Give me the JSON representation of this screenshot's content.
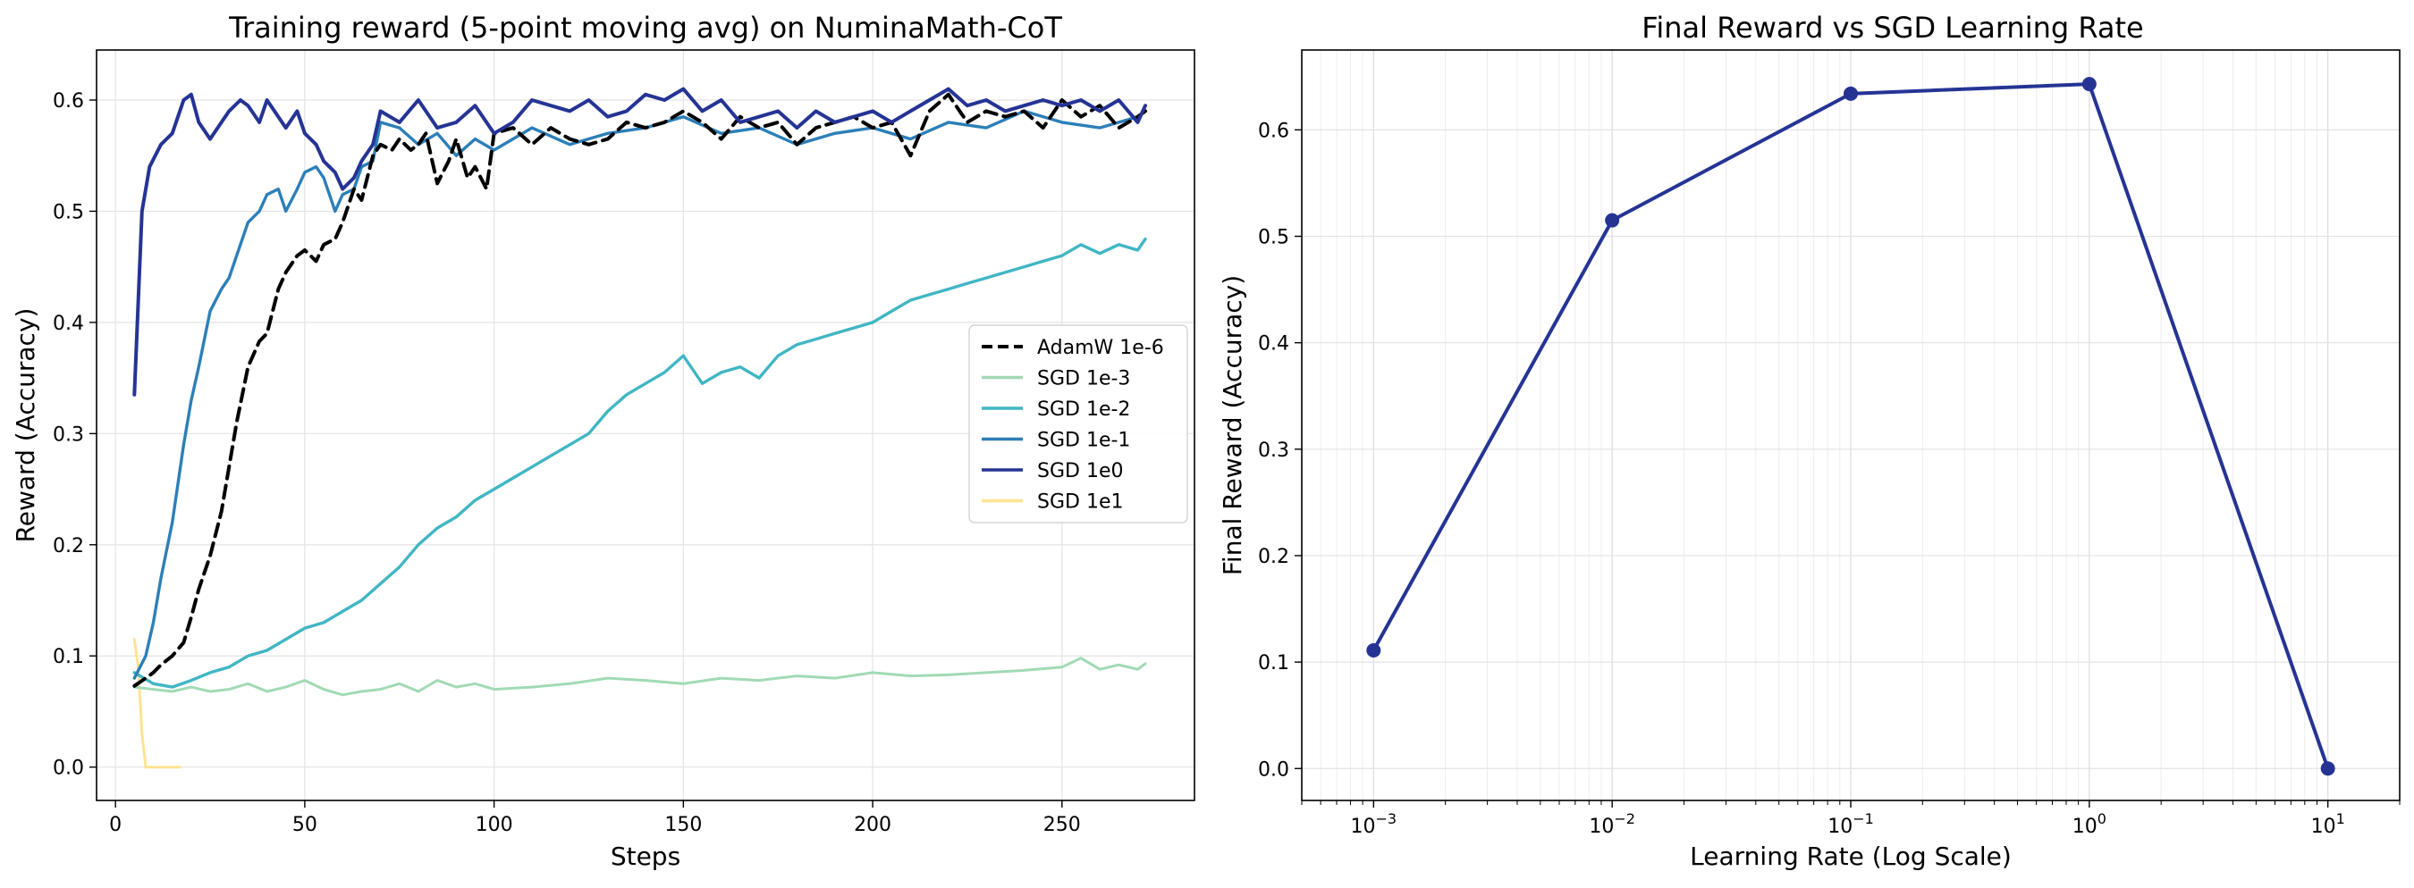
{
  "chart_data": [
    {
      "type": "line",
      "title": "Training reward (5-point moving avg) on NuminaMath-CoT",
      "xlabel": "Steps",
      "ylabel": "Reward (Accuracy)",
      "xlim": [
        -5,
        285
      ],
      "ylim": [
        -0.03,
        0.645
      ],
      "xticks": [
        0,
        50,
        100,
        150,
        200,
        250
      ],
      "yticks": [
        0.0,
        0.1,
        0.2,
        0.3,
        0.4,
        0.5,
        0.6
      ],
      "grid": true,
      "legend_position": "center-right",
      "series": [
        {
          "name": "AdamW 1e-6",
          "color": "#000000",
          "dashed": true,
          "x": [
            5,
            8,
            10,
            12,
            15,
            18,
            20,
            22,
            25,
            28,
            30,
            32,
            35,
            38,
            40,
            43,
            45,
            48,
            50,
            53,
            55,
            58,
            60,
            63,
            65,
            68,
            70,
            73,
            75,
            78,
            80,
            82,
            85,
            88,
            90,
            93,
            95,
            98,
            100,
            105,
            110,
            115,
            120,
            125,
            130,
            135,
            140,
            145,
            150,
            155,
            160,
            165,
            170,
            175,
            180,
            185,
            190,
            195,
            200,
            205,
            210,
            215,
            220,
            225,
            230,
            235,
            240,
            245,
            250,
            255,
            260,
            265,
            270,
            272
          ],
          "y": [
            0.073,
            0.08,
            0.085,
            0.092,
            0.1,
            0.112,
            0.135,
            0.16,
            0.19,
            0.23,
            0.27,
            0.31,
            0.36,
            0.383,
            0.39,
            0.43,
            0.445,
            0.46,
            0.465,
            0.455,
            0.47,
            0.475,
            0.49,
            0.52,
            0.51,
            0.55,
            0.56,
            0.555,
            0.565,
            0.555,
            0.56,
            0.57,
            0.525,
            0.545,
            0.565,
            0.53,
            0.54,
            0.52,
            0.57,
            0.575,
            0.56,
            0.575,
            0.565,
            0.56,
            0.565,
            0.58,
            0.575,
            0.58,
            0.59,
            0.58,
            0.565,
            0.585,
            0.575,
            0.58,
            0.56,
            0.575,
            0.58,
            0.585,
            0.575,
            0.58,
            0.55,
            0.59,
            0.605,
            0.58,
            0.59,
            0.585,
            0.59,
            0.575,
            0.6,
            0.585,
            0.595,
            0.575,
            0.585,
            0.59
          ]
        },
        {
          "name": "SGD 1e-3",
          "color": "#a1dab4",
          "dashed": false,
          "x": [
            5,
            10,
            15,
            20,
            25,
            30,
            35,
            40,
            45,
            50,
            55,
            60,
            65,
            70,
            75,
            80,
            85,
            90,
            95,
            100,
            110,
            120,
            130,
            140,
            150,
            160,
            170,
            180,
            190,
            200,
            210,
            220,
            230,
            240,
            250,
            255,
            260,
            265,
            270,
            272
          ],
          "y": [
            0.072,
            0.07,
            0.068,
            0.072,
            0.068,
            0.07,
            0.075,
            0.068,
            0.072,
            0.078,
            0.07,
            0.065,
            0.068,
            0.07,
            0.075,
            0.068,
            0.078,
            0.072,
            0.075,
            0.07,
            0.072,
            0.075,
            0.08,
            0.078,
            0.075,
            0.08,
            0.078,
            0.082,
            0.08,
            0.085,
            0.082,
            0.083,
            0.085,
            0.087,
            0.09,
            0.098,
            0.088,
            0.092,
            0.088,
            0.093
          ]
        },
        {
          "name": "SGD 1e-2",
          "color": "#41b6c4",
          "dashed": false,
          "x": [
            5,
            10,
            15,
            20,
            25,
            30,
            35,
            40,
            45,
            50,
            55,
            60,
            65,
            70,
            75,
            80,
            85,
            90,
            95,
            100,
            105,
            110,
            115,
            120,
            125,
            130,
            135,
            140,
            145,
            150,
            155,
            160,
            165,
            170,
            175,
            180,
            185,
            190,
            195,
            200,
            205,
            210,
            215,
            220,
            225,
            230,
            235,
            240,
            245,
            250,
            255,
            260,
            265,
            270,
            272
          ],
          "y": [
            0.085,
            0.075,
            0.072,
            0.078,
            0.085,
            0.09,
            0.1,
            0.105,
            0.115,
            0.125,
            0.13,
            0.14,
            0.15,
            0.165,
            0.18,
            0.2,
            0.215,
            0.225,
            0.24,
            0.25,
            0.26,
            0.27,
            0.28,
            0.29,
            0.3,
            0.32,
            0.335,
            0.345,
            0.355,
            0.37,
            0.345,
            0.355,
            0.36,
            0.35,
            0.37,
            0.38,
            0.385,
            0.39,
            0.395,
            0.4,
            0.41,
            0.42,
            0.425,
            0.43,
            0.435,
            0.44,
            0.445,
            0.45,
            0.455,
            0.46,
            0.47,
            0.462,
            0.47,
            0.465,
            0.475
          ]
        },
        {
          "name": "SGD 1e-1",
          "color": "#2c7fb8",
          "dashed": false,
          "x": [
            5,
            8,
            10,
            12,
            15,
            18,
            20,
            22,
            25,
            28,
            30,
            33,
            35,
            38,
            40,
            43,
            45,
            48,
            50,
            53,
            55,
            58,
            60,
            63,
            65,
            68,
            70,
            75,
            80,
            85,
            90,
            95,
            100,
            110,
            120,
            130,
            140,
            150,
            160,
            170,
            180,
            190,
            200,
            210,
            220,
            230,
            240,
            250,
            260,
            270,
            272
          ],
          "y": [
            0.08,
            0.1,
            0.13,
            0.17,
            0.22,
            0.29,
            0.33,
            0.36,
            0.41,
            0.43,
            0.44,
            0.47,
            0.49,
            0.5,
            0.515,
            0.52,
            0.5,
            0.52,
            0.535,
            0.54,
            0.53,
            0.5,
            0.515,
            0.52,
            0.54,
            0.545,
            0.58,
            0.575,
            0.56,
            0.57,
            0.55,
            0.565,
            0.555,
            0.575,
            0.56,
            0.57,
            0.575,
            0.585,
            0.57,
            0.575,
            0.56,
            0.57,
            0.575,
            0.565,
            0.58,
            0.575,
            0.59,
            0.58,
            0.575,
            0.585,
            0.59
          ]
        },
        {
          "name": "SGD 1e0",
          "color": "#253494",
          "dashed": false,
          "x": [
            5,
            7,
            9,
            12,
            15,
            18,
            20,
            22,
            25,
            28,
            30,
            33,
            35,
            38,
            40,
            43,
            45,
            48,
            50,
            53,
            55,
            58,
            60,
            63,
            65,
            68,
            70,
            75,
            80,
            85,
            90,
            95,
            100,
            105,
            110,
            115,
            120,
            125,
            130,
            135,
            140,
            145,
            150,
            155,
            160,
            165,
            170,
            175,
            180,
            185,
            190,
            195,
            200,
            205,
            210,
            215,
            220,
            225,
            230,
            235,
            240,
            245,
            250,
            255,
            260,
            265,
            270,
            272
          ],
          "y": [
            0.335,
            0.5,
            0.54,
            0.56,
            0.57,
            0.6,
            0.605,
            0.58,
            0.565,
            0.58,
            0.59,
            0.6,
            0.595,
            0.58,
            0.6,
            0.585,
            0.575,
            0.59,
            0.57,
            0.56,
            0.545,
            0.535,
            0.52,
            0.53,
            0.545,
            0.56,
            0.59,
            0.58,
            0.6,
            0.575,
            0.58,
            0.595,
            0.57,
            0.58,
            0.6,
            0.595,
            0.59,
            0.6,
            0.585,
            0.59,
            0.605,
            0.6,
            0.61,
            0.59,
            0.6,
            0.58,
            0.585,
            0.59,
            0.575,
            0.59,
            0.58,
            0.585,
            0.59,
            0.58,
            0.59,
            0.6,
            0.61,
            0.595,
            0.6,
            0.59,
            0.595,
            0.6,
            0.595,
            0.6,
            0.59,
            0.6,
            0.58,
            0.595
          ]
        },
        {
          "name": "SGD 1e1",
          "color": "#fee391",
          "dashed": false,
          "x": [
            5,
            6,
            7,
            8,
            10,
            12,
            15,
            17
          ],
          "y": [
            0.115,
            0.09,
            0.03,
            0.0,
            0.0,
            0.0,
            0.0,
            0.0
          ]
        }
      ]
    },
    {
      "type": "line",
      "title": "Final Reward vs SGD Learning Rate",
      "xlabel": "Learning Rate (Log Scale)",
      "ylabel": "Final Reward (Accuracy)",
      "xscale": "log",
      "xlim": [
        0.0005,
        20
      ],
      "ylim": [
        -0.03,
        0.675
      ],
      "xticks": [
        "10^-3",
        "10^-2",
        "10^-1",
        "10^0",
        "10^1"
      ],
      "yticks": [
        0.0,
        0.1,
        0.2,
        0.3,
        0.4,
        0.5,
        0.6
      ],
      "grid": true,
      "series": [
        {
          "color": "#253494",
          "markers": true,
          "x": [
            0.001,
            0.01,
            0.1,
            1,
            10
          ],
          "y": [
            0.111,
            0.515,
            0.634,
            0.643,
            0.0
          ]
        }
      ]
    }
  ]
}
